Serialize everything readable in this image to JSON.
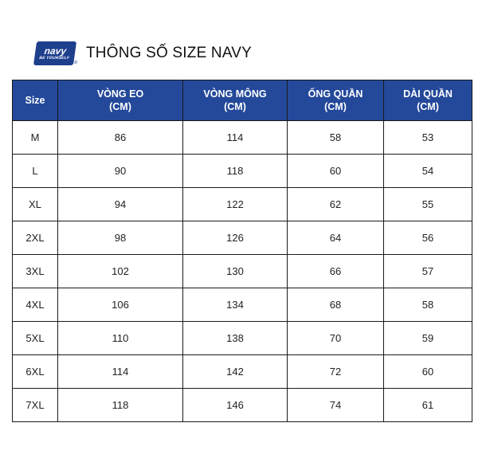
{
  "logo": {
    "main": "navy",
    "tagline": "BE YOURSELF",
    "reg": "®"
  },
  "title": "THÔNG SỐ SIZE NAVY",
  "table": {
    "headers": [
      {
        "line1": "Size",
        "line2": ""
      },
      {
        "line1": "VÒNG EO",
        "line2": "(CM)"
      },
      {
        "line1": "VÒNG MÔNG",
        "line2": "(CM)"
      },
      {
        "line1": "ỐNG QUẦN",
        "line2": "(CM)"
      },
      {
        "line1": "DÀI QUẦN",
        "line2": "(CM)"
      }
    ],
    "rows": [
      [
        "M",
        "86",
        "114",
        "58",
        "53"
      ],
      [
        "L",
        "90",
        "118",
        "60",
        "54"
      ],
      [
        "XL",
        "94",
        "122",
        "62",
        "55"
      ],
      [
        "2XL",
        "98",
        "126",
        "64",
        "56"
      ],
      [
        "3XL",
        "102",
        "130",
        "66",
        "57"
      ],
      [
        "4XL",
        "106",
        "134",
        "68",
        "58"
      ],
      [
        "5XL",
        "110",
        "138",
        "70",
        "59"
      ],
      [
        "6XL",
        "114",
        "142",
        "72",
        "60"
      ],
      [
        "7XL",
        "118",
        "146",
        "74",
        "61"
      ]
    ]
  },
  "colors": {
    "header_bg": "#24499a",
    "logo_bg": "#1e3f8c"
  }
}
